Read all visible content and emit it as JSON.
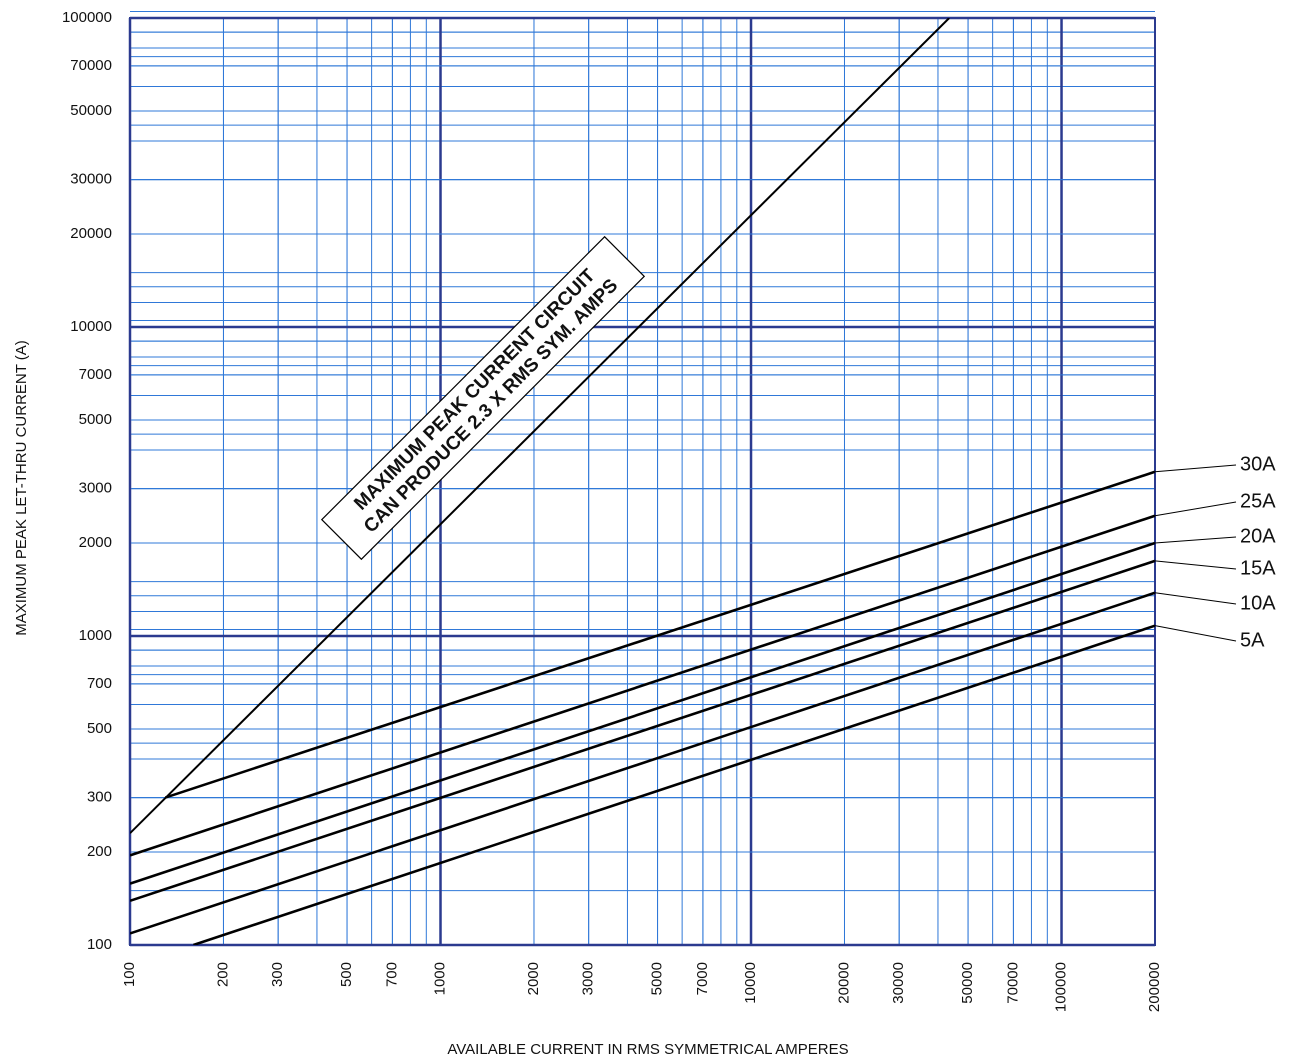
{
  "chart_data": {
    "type": "line",
    "x_label": "AVAILABLE CURRENT IN RMS SYMMETRICAL AMPERES",
    "y_label": "MAXIMUM PEAK LET-THRU CURRENT (A)",
    "annotation": [
      "MAXIMUM PEAK CURRENT CIRCUIT",
      "CAN PRODUCE 2.3 X RMS SYM. AMPS"
    ],
    "log_x": true,
    "log_y": true,
    "grid": true,
    "grid_color": "#2f78d8",
    "major_grid_color": "#2b3a8f",
    "xlim": [
      100,
      200000
    ],
    "ylim": [
      100,
      100000
    ],
    "xticks": [
      100,
      200,
      300,
      500,
      700,
      1000,
      2000,
      3000,
      5000,
      7000,
      10000,
      20000,
      30000,
      50000,
      70000,
      100000,
      200000
    ],
    "yticks": [
      100,
      200,
      300,
      500,
      700,
      1000,
      2000,
      3000,
      5000,
      7000,
      10000,
      20000,
      30000,
      50000,
      70000,
      100000
    ],
    "series": [
      {
        "name": null,
        "color": "#000000",
        "x": [
          100,
          43478
        ],
        "values": [
          230,
          100000
        ]
      },
      {
        "name": "30A",
        "color": "#000000",
        "x": [
          130,
          200000
        ],
        "values": [
          300,
          3400
        ]
      },
      {
        "name": "25A",
        "color": "#000000",
        "x": [
          100,
          200000
        ],
        "values": [
          195,
          2450
        ]
      },
      {
        "name": "20A",
        "color": "#000000",
        "x": [
          100,
          200000
        ],
        "values": [
          158,
          2000
        ]
      },
      {
        "name": "15A",
        "color": "#000000",
        "x": [
          100,
          200000
        ],
        "values": [
          139,
          1750
        ]
      },
      {
        "name": "10A",
        "color": "#000000",
        "x": [
          100,
          200000
        ],
        "values": [
          109,
          1380
        ]
      },
      {
        "name": "5A",
        "color": "#000000",
        "x": [
          160,
          200000
        ],
        "values": [
          100,
          1080
        ]
      }
    ]
  }
}
